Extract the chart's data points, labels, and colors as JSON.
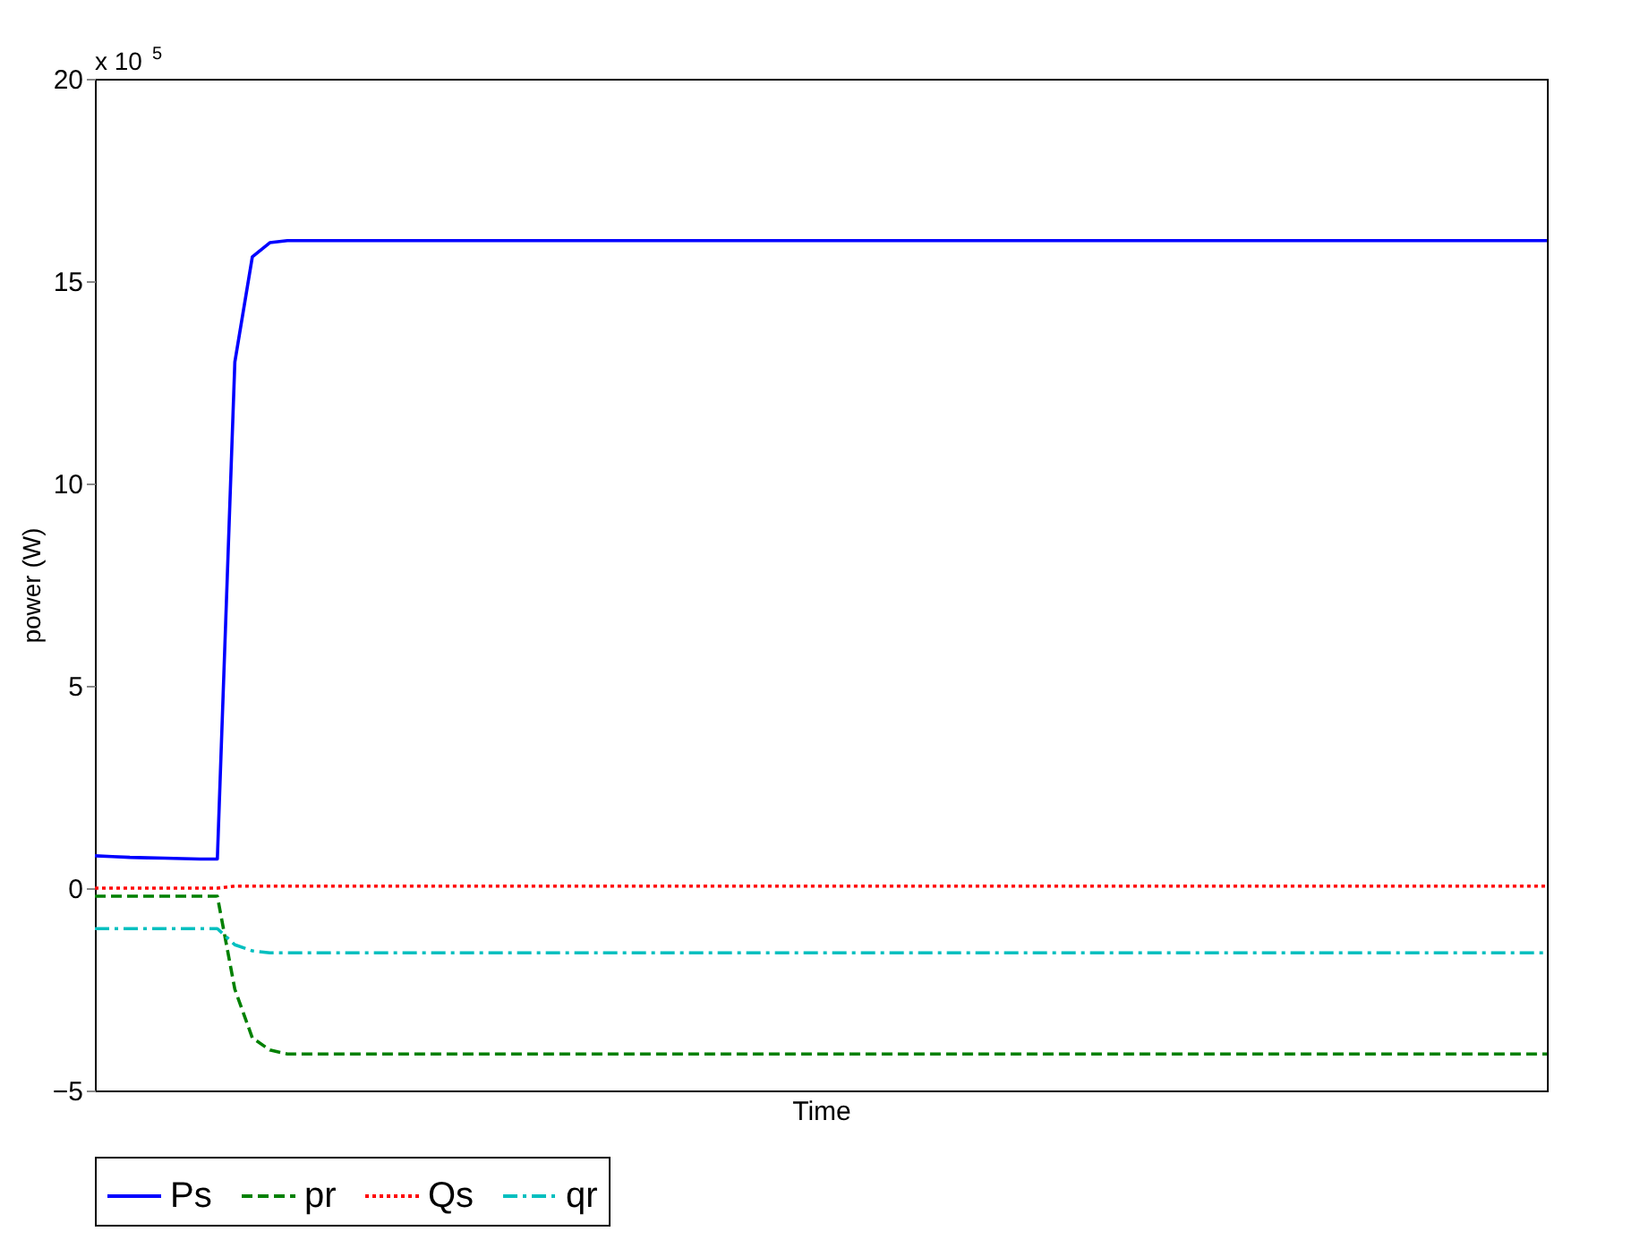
{
  "chart_data": {
    "type": "line",
    "categories": [
      null,
      null,
      null,
      null,
      null,
      null,
      null,
      null,
      null,
      null,
      null,
      null,
      null,
      null,
      null,
      null,
      null,
      null,
      null,
      null,
      null,
      null,
      null,
      null,
      null,
      null,
      null,
      null,
      null,
      null,
      null,
      null,
      null,
      null,
      null,
      null,
      null,
      null,
      null,
      null,
      null,
      null,
      null,
      null,
      null,
      null,
      null,
      null,
      null,
      null,
      null,
      null,
      null,
      null,
      null,
      null,
      null,
      null,
      null,
      null,
      null,
      null,
      null,
      null,
      null,
      null,
      null,
      null,
      null,
      null,
      null,
      null,
      null,
      null,
      null,
      null,
      null,
      null,
      null,
      null,
      null,
      null,
      null,
      null
    ],
    "series": [
      {
        "name": "Ps",
        "color": "#0000ff",
        "line_style": "solid",
        "values": [
          0.8,
          0.78,
          0.76,
          0.75,
          0.74,
          0.73,
          0.72,
          0.72,
          13,
          15.6,
          15.95,
          16,
          16,
          16,
          16,
          16,
          16,
          16,
          16,
          16,
          16,
          16,
          16,
          16,
          16,
          16,
          16,
          16,
          16,
          16,
          16,
          16,
          16,
          16,
          16,
          16,
          16,
          16,
          16,
          16,
          16,
          16,
          16,
          16,
          16,
          16,
          16,
          16,
          16,
          16,
          16,
          16,
          16,
          16,
          16,
          16,
          16,
          16,
          16,
          16,
          16,
          16,
          16,
          16,
          16,
          16,
          16,
          16,
          16,
          16,
          16,
          16,
          16,
          16,
          16,
          16,
          16,
          16,
          16,
          16,
          16,
          16,
          16,
          16
        ]
      },
      {
        "name": "pr",
        "color": "#008000",
        "line_style": "dashed",
        "values": [
          -0.2,
          -0.2,
          -0.2,
          -0.2,
          -0.2,
          -0.2,
          -0.2,
          -0.2,
          -2.5,
          -3.7,
          -4.0,
          -4.1,
          -4.1,
          -4.1,
          -4.1,
          -4.1,
          -4.1,
          -4.1,
          -4.1,
          -4.1,
          -4.1,
          -4.1,
          -4.1,
          -4.1,
          -4.1,
          -4.1,
          -4.1,
          -4.1,
          -4.1,
          -4.1,
          -4.1,
          -4.1,
          -4.1,
          -4.1,
          -4.1,
          -4.1,
          -4.1,
          -4.1,
          -4.1,
          -4.1,
          -4.1,
          -4.1,
          -4.1,
          -4.1,
          -4.1,
          -4.1,
          -4.1,
          -4.1,
          -4.1,
          -4.1,
          -4.1,
          -4.1,
          -4.1,
          -4.1,
          -4.1,
          -4.1,
          -4.1,
          -4.1,
          -4.1,
          -4.1,
          -4.1,
          -4.1,
          -4.1,
          -4.1,
          -4.1,
          -4.1,
          -4.1,
          -4.1,
          -4.1,
          -4.1,
          -4.1,
          -4.1,
          -4.1,
          -4.1,
          -4.1,
          -4.1,
          -4.1,
          -4.1,
          -4.1,
          -4.1,
          -4.1,
          -4.1,
          -4.1,
          -4.1
        ]
      },
      {
        "name": "Qs",
        "color": "#ff0000",
        "line_style": "dotted",
        "values": [
          0,
          0,
          0,
          0,
          0,
          0,
          0,
          0,
          0.05,
          0.05,
          0.05,
          0.05,
          0.05,
          0.05,
          0.05,
          0.05,
          0.05,
          0.05,
          0.05,
          0.05,
          0.05,
          0.05,
          0.05,
          0.05,
          0.05,
          0.05,
          0.05,
          0.05,
          0.05,
          0.05,
          0.05,
          0.05,
          0.05,
          0.05,
          0.05,
          0.05,
          0.05,
          0.05,
          0.05,
          0.05,
          0.05,
          0.05,
          0.05,
          0.05,
          0.05,
          0.05,
          0.05,
          0.05,
          0.05,
          0.05,
          0.05,
          0.05,
          0.05,
          0.05,
          0.05,
          0.05,
          0.05,
          0.05,
          0.05,
          0.05,
          0.05,
          0.05,
          0.05,
          0.05,
          0.05,
          0.05,
          0.05,
          0.05,
          0.05,
          0.05,
          0.05,
          0.05,
          0.05,
          0.05,
          0.05,
          0.05,
          0.05,
          0.05,
          0.05,
          0.05,
          0.05,
          0.05,
          0.05,
          0.05
        ]
      },
      {
        "name": "qr",
        "color": "#00bfbf",
        "line_style": "dashdot",
        "values": [
          -1.0,
          -1.0,
          -1.0,
          -1.0,
          -1.0,
          -1.0,
          -1.0,
          -1.0,
          -1.4,
          -1.55,
          -1.6,
          -1.6,
          -1.6,
          -1.6,
          -1.6,
          -1.6,
          -1.6,
          -1.6,
          -1.6,
          -1.6,
          -1.6,
          -1.6,
          -1.6,
          -1.6,
          -1.6,
          -1.6,
          -1.6,
          -1.6,
          -1.6,
          -1.6,
          -1.6,
          -1.6,
          -1.6,
          -1.6,
          -1.6,
          -1.6,
          -1.6,
          -1.6,
          -1.6,
          -1.6,
          -1.6,
          -1.6,
          -1.6,
          -1.6,
          -1.6,
          -1.6,
          -1.6,
          -1.6,
          -1.6,
          -1.6,
          -1.6,
          -1.6,
          -1.6,
          -1.6,
          -1.6,
          -1.6,
          -1.6,
          -1.6,
          -1.6,
          -1.6,
          -1.6,
          -1.6,
          -1.6,
          -1.6,
          -1.6,
          -1.6,
          -1.6,
          -1.6,
          -1.6,
          -1.6,
          -1.6,
          -1.6,
          -1.6,
          -1.6,
          -1.6,
          -1.6,
          -1.6,
          -1.6,
          -1.6,
          -1.6,
          -1.6,
          -1.6,
          -1.6,
          -1.6
        ]
      }
    ],
    "xlabel": "Time",
    "ylabel": "power (W)",
    "ylim": [
      -5,
      20
    ],
    "yticks": [
      -5,
      0,
      5,
      10,
      15,
      20
    ],
    "annotations": [
      "x 10$^{5}$"
    ],
    "legend": "bottom",
    "grid": false
  }
}
